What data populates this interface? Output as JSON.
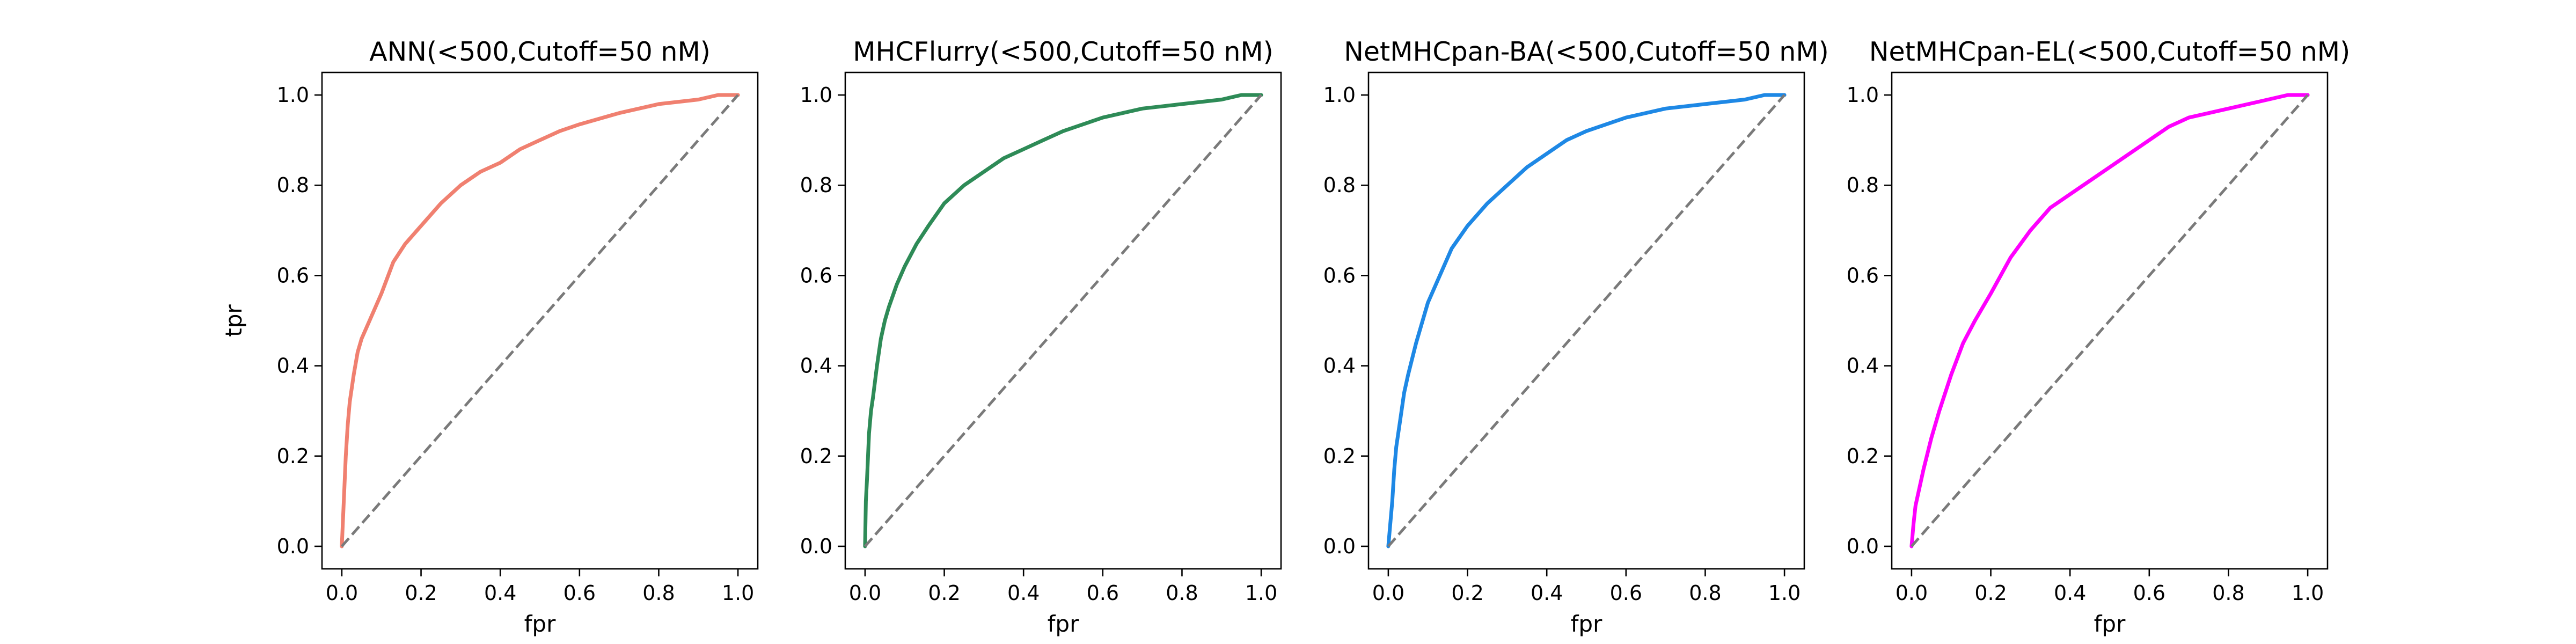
{
  "chart_data": [
    {
      "type": "line",
      "title": "ANN(<500,Cutoff=50 nM)",
      "xlabel": "fpr",
      "ylabel": "tpr",
      "xlim": [
        -0.05,
        1.05
      ],
      "ylim": [
        -0.05,
        1.05
      ],
      "xticks": [
        "0.0",
        "0.2",
        "0.4",
        "0.6",
        "0.8",
        "1.0"
      ],
      "yticks": [
        "0.0",
        "0.2",
        "0.4",
        "0.6",
        "0.8",
        "1.0"
      ],
      "grid": false,
      "series": [
        {
          "color": "#f08070",
          "x": [
            0,
            0.005,
            0.01,
            0.015,
            0.02,
            0.03,
            0.04,
            0.05,
            0.07,
            0.1,
            0.13,
            0.16,
            0.2,
            0.25,
            0.3,
            0.35,
            0.4,
            0.45,
            0.5,
            0.55,
            0.6,
            0.7,
            0.8,
            0.9,
            0.95,
            1.0
          ],
          "y": [
            0,
            0.1,
            0.2,
            0.27,
            0.32,
            0.38,
            0.43,
            0.46,
            0.5,
            0.56,
            0.63,
            0.67,
            0.71,
            0.76,
            0.8,
            0.83,
            0.85,
            0.88,
            0.9,
            0.92,
            0.935,
            0.96,
            0.98,
            0.99,
            1.0,
            1.0
          ]
        },
        {
          "color": "#7a7a7a",
          "dashed": true,
          "x": [
            0,
            1
          ],
          "y": [
            0,
            1
          ]
        }
      ]
    },
    {
      "type": "line",
      "title": "MHCFlurry(<500,Cutoff=50 nM)",
      "xlabel": "fpr",
      "ylabel": "",
      "xlim": [
        -0.05,
        1.05
      ],
      "ylim": [
        -0.05,
        1.05
      ],
      "xticks": [
        "0.0",
        "0.2",
        "0.4",
        "0.6",
        "0.8",
        "1.0"
      ],
      "yticks": [
        "0.0",
        "0.2",
        "0.4",
        "0.6",
        "0.8",
        "1.0"
      ],
      "grid": false,
      "series": [
        {
          "color": "#2e8b57",
          "x": [
            0,
            0.002,
            0.005,
            0.01,
            0.015,
            0.02,
            0.03,
            0.04,
            0.05,
            0.06,
            0.08,
            0.1,
            0.13,
            0.16,
            0.2,
            0.25,
            0.3,
            0.35,
            0.4,
            0.45,
            0.5,
            0.6,
            0.7,
            0.8,
            0.9,
            0.95,
            1.0
          ],
          "y": [
            0,
            0.1,
            0.15,
            0.25,
            0.3,
            0.33,
            0.4,
            0.46,
            0.5,
            0.53,
            0.58,
            0.62,
            0.67,
            0.71,
            0.76,
            0.8,
            0.83,
            0.86,
            0.88,
            0.9,
            0.92,
            0.95,
            0.97,
            0.98,
            0.99,
            1.0,
            1.0
          ]
        },
        {
          "color": "#7a7a7a",
          "dashed": true,
          "x": [
            0,
            1
          ],
          "y": [
            0,
            1
          ]
        }
      ]
    },
    {
      "type": "line",
      "title": "NetMHCpan-BA(<500,Cutoff=50 nM)",
      "xlabel": "fpr",
      "ylabel": "",
      "xlim": [
        -0.05,
        1.05
      ],
      "ylim": [
        -0.05,
        1.05
      ],
      "xticks": [
        "0.0",
        "0.2",
        "0.4",
        "0.6",
        "0.8",
        "1.0"
      ],
      "yticks": [
        "0.0",
        "0.2",
        "0.4",
        "0.6",
        "0.8",
        "1.0"
      ],
      "grid": false,
      "series": [
        {
          "color": "#1e88e5",
          "x": [
            0,
            0.005,
            0.01,
            0.015,
            0.02,
            0.03,
            0.04,
            0.05,
            0.07,
            0.1,
            0.13,
            0.16,
            0.2,
            0.25,
            0.3,
            0.35,
            0.4,
            0.45,
            0.5,
            0.6,
            0.7,
            0.8,
            0.9,
            0.95,
            1.0
          ],
          "y": [
            0,
            0.05,
            0.1,
            0.17,
            0.22,
            0.28,
            0.34,
            0.38,
            0.45,
            0.54,
            0.6,
            0.66,
            0.71,
            0.76,
            0.8,
            0.84,
            0.87,
            0.9,
            0.92,
            0.95,
            0.97,
            0.98,
            0.99,
            1.0,
            1.0
          ]
        },
        {
          "color": "#7a7a7a",
          "dashed": true,
          "x": [
            0,
            1
          ],
          "y": [
            0,
            1
          ]
        }
      ]
    },
    {
      "type": "line",
      "title": "NetMHCpan-EL(<500,Cutoff=50 nM)",
      "xlabel": "fpr",
      "ylabel": "",
      "xlim": [
        -0.05,
        1.05
      ],
      "ylim": [
        -0.05,
        1.05
      ],
      "xticks": [
        "0.0",
        "0.2",
        "0.4",
        "0.6",
        "0.8",
        "1.0"
      ],
      "yticks": [
        "0.0",
        "0.2",
        "0.4",
        "0.6",
        "0.8",
        "1.0"
      ],
      "grid": false,
      "series": [
        {
          "color": "#ff00ff",
          "x": [
            0,
            0.005,
            0.01,
            0.02,
            0.03,
            0.05,
            0.07,
            0.1,
            0.13,
            0.16,
            0.2,
            0.25,
            0.3,
            0.35,
            0.4,
            0.45,
            0.5,
            0.55,
            0.6,
            0.65,
            0.7,
            0.8,
            0.9,
            0.95,
            1.0
          ],
          "y": [
            0,
            0.05,
            0.09,
            0.13,
            0.17,
            0.24,
            0.3,
            0.38,
            0.45,
            0.5,
            0.56,
            0.64,
            0.7,
            0.75,
            0.78,
            0.81,
            0.84,
            0.87,
            0.9,
            0.93,
            0.95,
            0.97,
            0.99,
            1.0,
            1.0
          ]
        },
        {
          "color": "#7a7a7a",
          "dashed": true,
          "x": [
            0,
            1
          ],
          "y": [
            0,
            1
          ]
        }
      ]
    }
  ]
}
